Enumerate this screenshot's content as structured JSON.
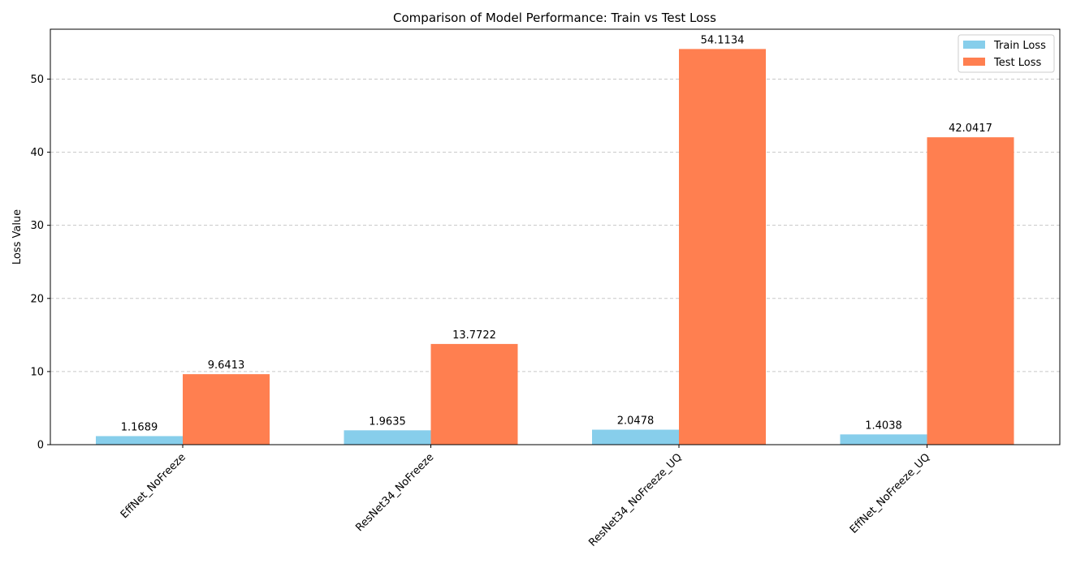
{
  "chart_data": {
    "type": "bar",
    "title": "Comparison of Model Performance: Train vs Test Loss",
    "xlabel": "",
    "ylabel": "Loss Value",
    "categories": [
      "EffNet_NoFreeze",
      "ResNet34_NoFreeze",
      "ResNet34_NoFreeze_UQ",
      "EffNet_NoFreeze_UQ"
    ],
    "series": [
      {
        "name": "Train Loss",
        "color": "#87CEEB",
        "values": [
          1.1689,
          1.9635,
          2.0478,
          1.4038
        ],
        "labels": [
          "1.1689",
          "1.9635",
          "2.0478",
          "1.4038"
        ]
      },
      {
        "name": "Test Loss",
        "color": "#FF7F50",
        "values": [
          9.6413,
          13.7722,
          54.1134,
          42.0417
        ],
        "labels": [
          "9.6413",
          "13.7722",
          "54.1134",
          "42.0417"
        ]
      }
    ],
    "ylim": [
      0,
      56.82
    ],
    "yticks": [
      0,
      10,
      20,
      30,
      40,
      50
    ],
    "ytick_labels": [
      "0",
      "10",
      "20",
      "30",
      "40",
      "50"
    ],
    "grid": "y-dashed",
    "legend": "top-right"
  }
}
